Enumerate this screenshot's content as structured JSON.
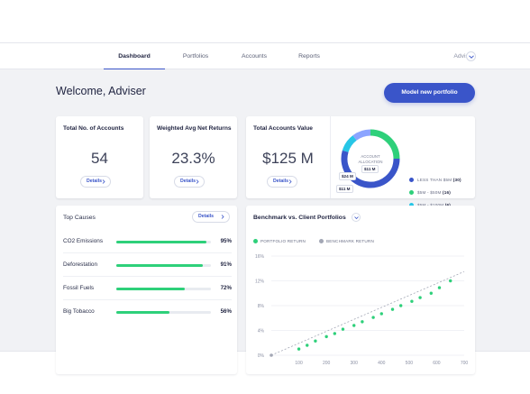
{
  "nav": {
    "tabs": [
      {
        "label": "Dashboard",
        "active": true
      },
      {
        "label": "Portfolios",
        "active": false
      },
      {
        "label": "Accounts",
        "active": false
      },
      {
        "label": "Reports",
        "active": false
      }
    ],
    "user": "Adviser"
  },
  "header": {
    "welcome": "Welcome, Adviser",
    "cta_label": "Model new portfolio"
  },
  "colors": {
    "accent": "#3a55c9",
    "green": "#2ed07a"
  },
  "kpis": [
    {
      "title": "Total No. of Accounts",
      "value": "54",
      "details": "Details"
    },
    {
      "title": "Weighted Avg Net Returns",
      "value": "23.3%",
      "details": "Details"
    },
    {
      "title": "Total Accounts Value",
      "value": "$125 M",
      "details": "Details"
    }
  ],
  "allocation": {
    "center_line1": "ACCOUNT",
    "center_line2": "ALLOCATION",
    "ring_labels": [
      "$11 M",
      "$24 M",
      "$11 M",
      "$60 M"
    ],
    "legend": [
      {
        "label": "LESS THAN $5M",
        "count": "(30)",
        "color": "#3a55c9"
      },
      {
        "label": "$5M - $50M",
        "count": "(16)",
        "color": "#2ed07a"
      },
      {
        "label": "$5M - $100M",
        "count": "(6)",
        "color": "#27c6e6"
      },
      {
        "label": "MORE THAN $100M",
        "count": "(2)",
        "color": "#8ba4ff"
      }
    ]
  },
  "causes": {
    "title": "Top Causes",
    "details": "Details",
    "items": [
      {
        "name": "CO2 Emissions",
        "pct": "95%",
        "value": 95
      },
      {
        "name": "Deforestation",
        "pct": "91%",
        "value": 91
      },
      {
        "name": "Fossil Fuels",
        "pct": "72%",
        "value": 72
      },
      {
        "name": "Big Tobacco",
        "pct": "56%",
        "value": 56
      }
    ]
  },
  "benchmark": {
    "title": "Benchmark vs. Client Portfolios",
    "legend": [
      "PORTFOLIO RETURN",
      "BENCHMARK RETURN"
    ]
  },
  "chart_data": {
    "type": "scatter",
    "x_ticks": [
      "100",
      "200",
      "300",
      "400",
      "500",
      "600",
      "700"
    ],
    "y_ticks": [
      "0%",
      "4%",
      "8%",
      "12%",
      "16%"
    ],
    "xlim": [
      0,
      700
    ],
    "ylim": [
      0,
      16
    ],
    "series": [
      {
        "name": "PORTFOLIO RETURN",
        "color": "#2ed07a",
        "x": [
          100,
          130,
          160,
          200,
          230,
          260,
          300,
          330,
          370,
          400,
          440,
          470,
          510,
          540,
          580,
          610,
          650
        ],
        "y": [
          1.0,
          1.6,
          2.3,
          3.0,
          3.5,
          4.2,
          4.8,
          5.4,
          6.1,
          6.7,
          7.4,
          8.0,
          8.7,
          9.3,
          10.0,
          10.9,
          12.0
        ]
      },
      {
        "name": "BENCHMARK RETURN",
        "color": "#a3a7b5",
        "x": [
          0,
          700
        ],
        "y": [
          0,
          13.5
        ]
      }
    ]
  }
}
